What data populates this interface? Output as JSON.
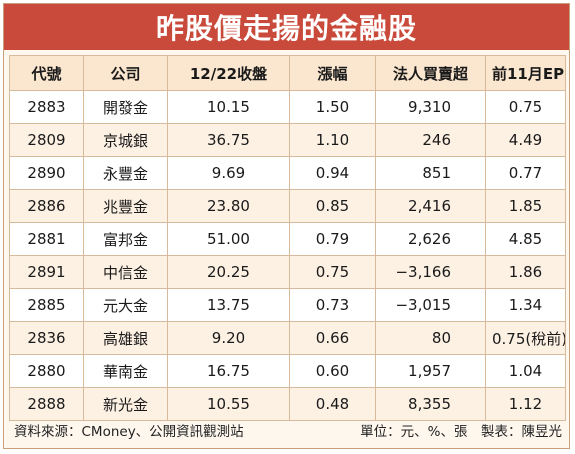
{
  "title": "昨股價走揚的金融股",
  "headers": [
    "代號",
    "公司",
    "12/22收盤",
    "漲幅",
    "法人買賣超",
    "前11月EPS"
  ],
  "rows": [
    {
      "code": "2883",
      "name": "開發金",
      "close": "10.15",
      "change": "1.50",
      "net": "9,310",
      "eps": "0.75"
    },
    {
      "code": "2809",
      "name": "京城銀",
      "close": "36.75",
      "change": "1.10",
      "net": "246",
      "eps": "4.49"
    },
    {
      "code": "2890",
      "name": "永豐金",
      "close": "9.69",
      "change": "0.94",
      "net": "851",
      "eps": "0.77"
    },
    {
      "code": "2886",
      "name": "兆豐金",
      "close": "23.80",
      "change": "0.85",
      "net": "2,416",
      "eps": "1.85"
    },
    {
      "code": "2881",
      "name": "富邦金",
      "close": "51.00",
      "change": "0.79",
      "net": "2,626",
      "eps": "4.85"
    },
    {
      "code": "2891",
      "name": "中信金",
      "close": "20.25",
      "change": "0.75",
      "net": "−3,166",
      "eps": "1.86"
    },
    {
      "code": "2885",
      "name": "元大金",
      "close": "13.75",
      "change": "0.73",
      "net": "−3,015",
      "eps": "1.34"
    },
    {
      "code": "2836",
      "name": "高雄銀",
      "close": "9.20",
      "change": "0.66",
      "net": "80",
      "eps": "0.75(稅前)"
    },
    {
      "code": "2880",
      "name": "華南金",
      "close": "16.75",
      "change": "0.60",
      "net": "1,957",
      "eps": "1.04"
    },
    {
      "code": "2888",
      "name": "新光金",
      "close": "10.55",
      "change": "0.48",
      "net": "8,355",
      "eps": "1.12"
    }
  ],
  "footer": {
    "source": "資料來源：CMoney、公開資訊觀測站",
    "unit": "單位：元、%、張　製表：陳昱光"
  },
  "colors": {
    "title_bg": "#c94a3a",
    "header_bg": "#fbe6cf",
    "stripe_bg": "#fdf1e4",
    "border": "#d7b99b"
  }
}
